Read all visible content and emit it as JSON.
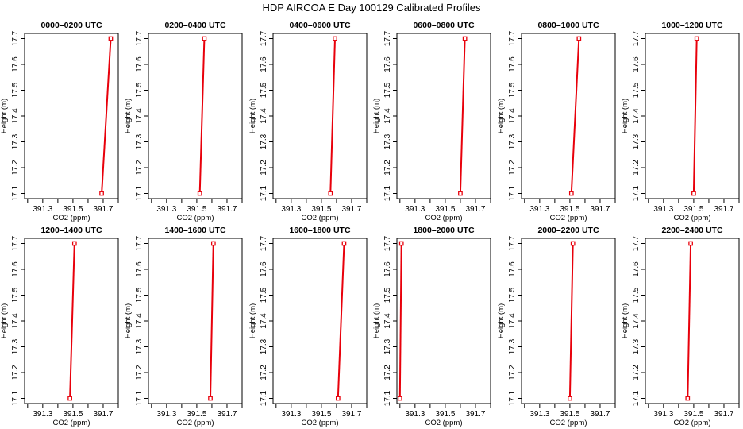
{
  "title": "HDP AIRCOA E  Day 100129  Calibrated Profiles",
  "colors": {
    "series": "#e8000b",
    "axis": "#000000",
    "background": "#ffffff"
  },
  "chart_data": {
    "type": "line",
    "xlabel": "CO2 (ppm)",
    "ylabel": "Height (m)",
    "xlim": [
      391.18,
      391.8
    ],
    "ylim": [
      17.08,
      17.72
    ],
    "xticks": [
      391.3,
      391.5,
      391.7
    ],
    "xtick_labels": [
      "391.3",
      "391.5",
      "391.7"
    ],
    "yticks": [
      17.1,
      17.2,
      17.3,
      17.4,
      17.5,
      17.6,
      17.7
    ],
    "ytick_labels": [
      "17.1",
      "17.2",
      "17.3",
      "17.4",
      "17.5",
      "17.6",
      "17.7"
    ],
    "grid": false,
    "panels": [
      {
        "title": "0000–0200 UTC",
        "x": [
          391.69,
          391.75
        ],
        "y": [
          17.1,
          17.7
        ]
      },
      {
        "title": "0200–0400 UTC",
        "x": [
          391.52,
          391.55
        ],
        "y": [
          17.1,
          17.7
        ]
      },
      {
        "title": "0400–0600 UTC",
        "x": [
          391.56,
          391.59
        ],
        "y": [
          17.1,
          17.7
        ]
      },
      {
        "title": "0600–0800 UTC",
        "x": [
          391.6,
          391.63
        ],
        "y": [
          17.1,
          17.7
        ]
      },
      {
        "title": "0800–1000 UTC",
        "x": [
          391.51,
          391.56
        ],
        "y": [
          17.1,
          17.7
        ]
      },
      {
        "title": "1000–1200 UTC",
        "x": [
          391.5,
          391.52
        ],
        "y": [
          17.1,
          17.7
        ]
      },
      {
        "title": "1200–1400 UTC",
        "x": [
          391.48,
          391.51
        ],
        "y": [
          17.1,
          17.7
        ]
      },
      {
        "title": "1400–1600 UTC",
        "x": [
          391.59,
          391.61
        ],
        "y": [
          17.1,
          17.7
        ]
      },
      {
        "title": "1600–1800 UTC",
        "x": [
          391.61,
          391.65
        ],
        "y": [
          17.1,
          17.7
        ]
      },
      {
        "title": "1800–2000 UTC",
        "x": [
          391.2,
          391.21
        ],
        "y": [
          17.1,
          17.7
        ]
      },
      {
        "title": "2000–2200 UTC",
        "x": [
          391.5,
          391.52
        ],
        "y": [
          17.1,
          17.7
        ]
      },
      {
        "title": "2200–2400 UTC",
        "x": [
          391.46,
          391.48
        ],
        "y": [
          17.1,
          17.7
        ]
      }
    ]
  }
}
